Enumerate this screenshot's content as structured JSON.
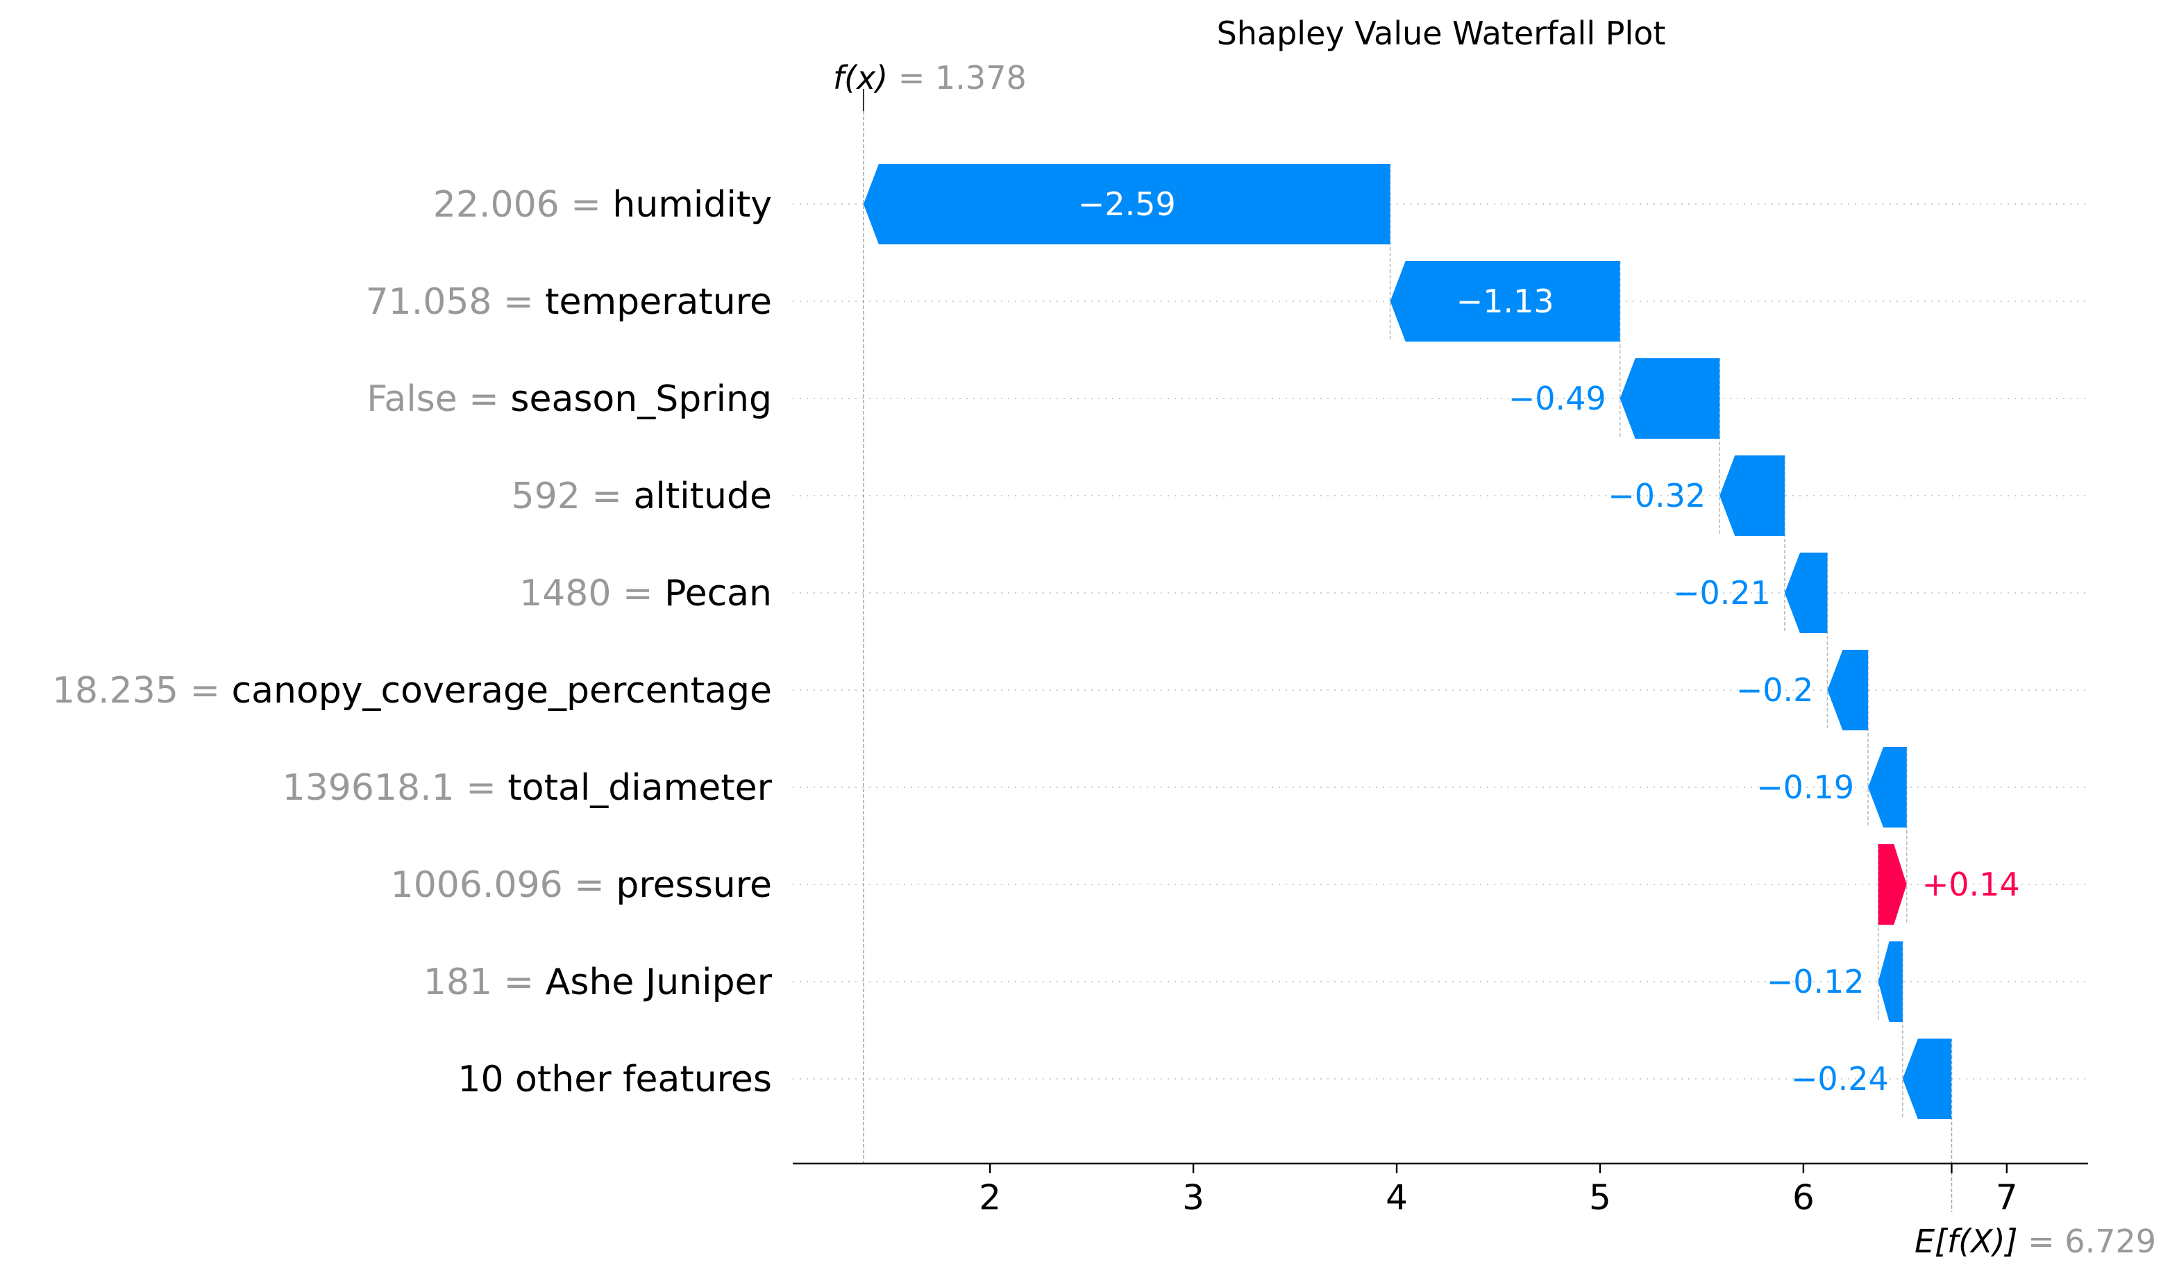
{
  "chart_data": {
    "type": "waterfall",
    "title": "Shapley Value Waterfall Plot",
    "fx": {
      "label": "f(x)",
      "sep": "=",
      "value": 1.378,
      "value_text": "1.378"
    },
    "base": {
      "label": "E[f(X)]",
      "sep": "=",
      "value": 6.729,
      "value_text": "6.729"
    },
    "xlim": [
      1.03,
      7.4
    ],
    "xticks": [
      2,
      3,
      4,
      5,
      6,
      7
    ],
    "features": [
      {
        "value": "22.006",
        "name": "humidity",
        "contribution": -2.59,
        "label": "−2.59"
      },
      {
        "value": "71.058",
        "name": "temperature",
        "contribution": -1.13,
        "label": "−1.13"
      },
      {
        "value": "False",
        "name": "season_Spring",
        "contribution": -0.49,
        "label": "−0.49"
      },
      {
        "value": "592",
        "name": "altitude",
        "contribution": -0.32,
        "label": "−0.32"
      },
      {
        "value": "1480",
        "name": "Pecan",
        "contribution": -0.21,
        "label": "−0.21"
      },
      {
        "value": "18.235",
        "name": "canopy_coverage_percentage",
        "contribution": -0.2,
        "label": "−0.2"
      },
      {
        "value": "139618.1",
        "name": "total_diameter",
        "contribution": -0.19,
        "label": "−0.19"
      },
      {
        "value": "1006.096",
        "name": "pressure",
        "contribution": 0.14,
        "label": "+0.14"
      },
      {
        "value": "181",
        "name": "Ashe Juniper",
        "contribution": -0.12,
        "label": "−0.12"
      },
      {
        "value": "",
        "name": "10 other features",
        "contribution": -0.24,
        "label": "−0.24"
      }
    ],
    "colors": {
      "negative": "#008bfb",
      "positive": "#ff0051"
    }
  }
}
